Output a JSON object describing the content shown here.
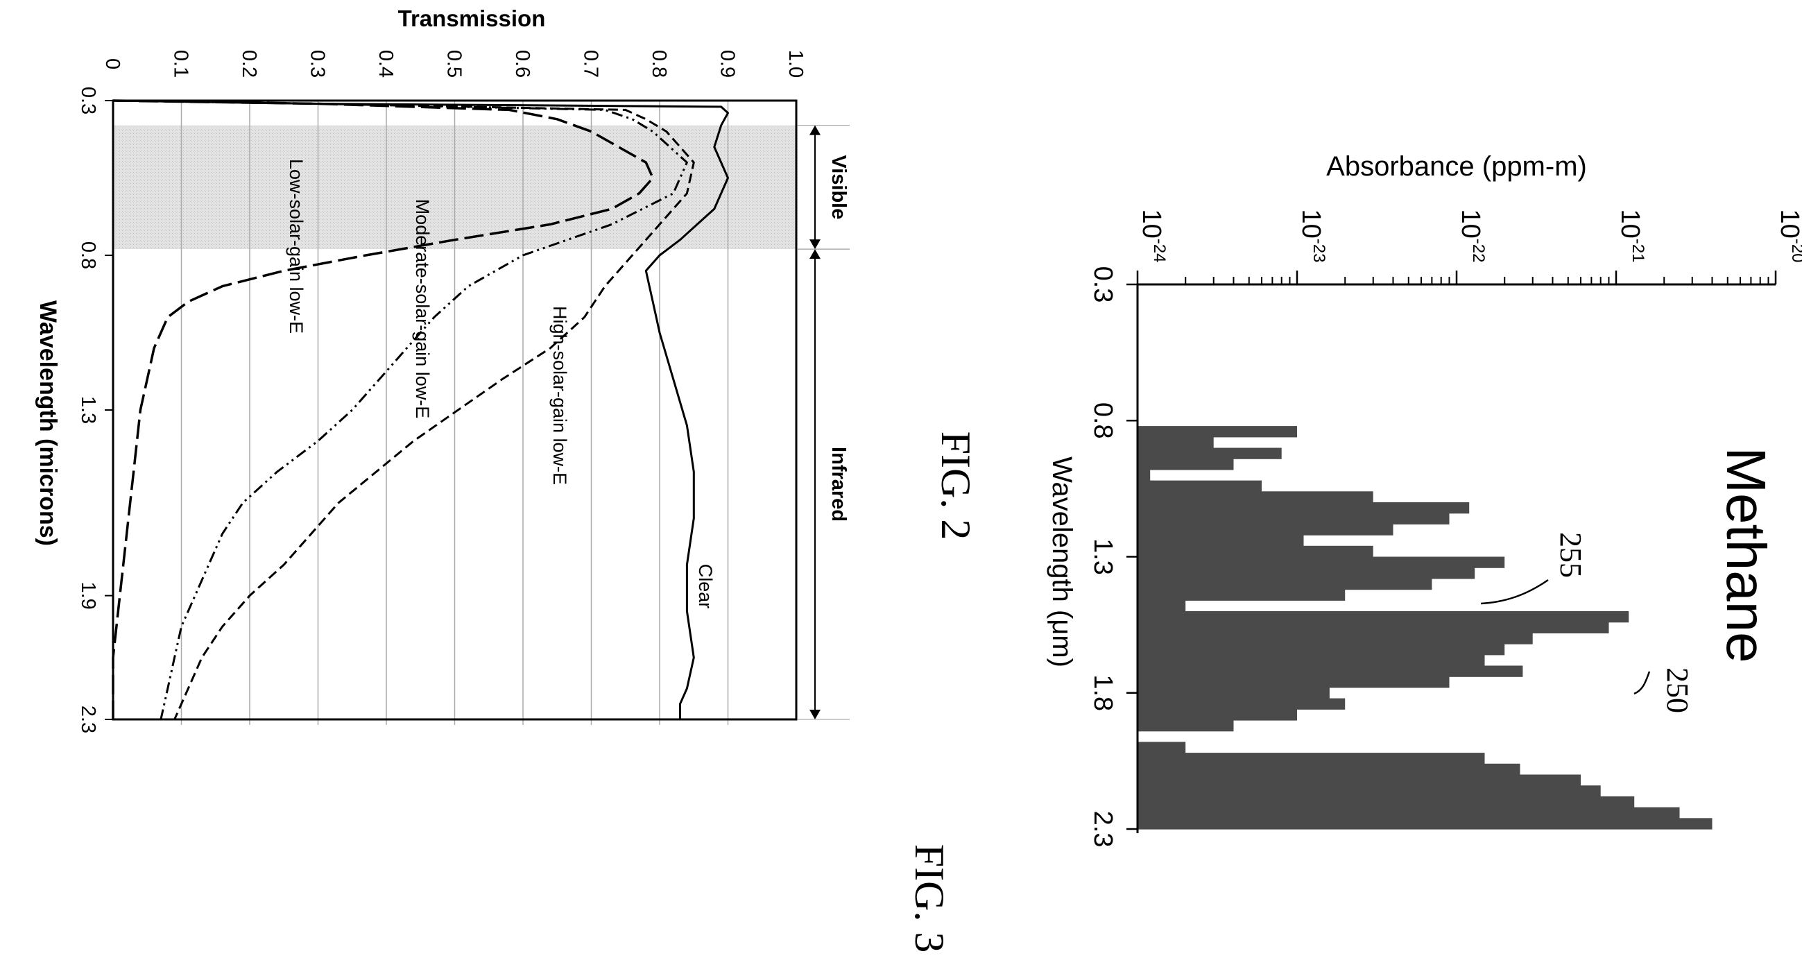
{
  "chart_data": [
    {
      "figure_label": "FIG. 2",
      "type": "bar",
      "title": "Methane",
      "xlabel": "Wavelength (μm)",
      "ylabel": "Absorbance (ppm-m)",
      "x_ticks": [
        "0.3",
        "0.8",
        "1.3",
        "1.8",
        "2.3"
      ],
      "xlim": [
        0.3,
        2.3
      ],
      "y_scale": "log",
      "ylim": [
        1e-24,
        1e-20
      ],
      "y_ticks": [
        {
          "base": "10",
          "exp": "-24"
        },
        {
          "base": "10",
          "exp": "-23"
        },
        {
          "base": "10",
          "exp": "-22"
        },
        {
          "base": "10",
          "exp": "-21"
        },
        {
          "base": "10",
          "exp": "-20"
        }
      ],
      "annotations": [
        "255",
        "250"
      ],
      "grid": false,
      "series": [
        {
          "x": [
            0.84,
            0.88,
            0.92,
            0.96,
            1.0,
            1.04,
            1.08,
            1.12,
            1.16,
            1.2,
            1.24,
            1.28,
            1.32,
            1.36,
            1.4,
            1.44,
            1.48,
            1.52,
            1.56,
            1.6,
            1.64,
            1.68,
            1.72,
            1.76,
            1.8,
            1.84,
            1.88,
            1.92,
            1.96,
            2.0,
            2.04,
            2.08,
            2.12,
            2.16,
            2.2,
            2.24,
            2.28
          ],
          "y": [
            1e-23,
            3e-24,
            8e-24,
            4e-24,
            1.2e-24,
            6e-24,
            3e-23,
            1.2e-22,
            9e-23,
            4e-23,
            1.1e-23,
            3e-23,
            2e-22,
            1.3e-22,
            7e-23,
            2e-23,
            2e-24,
            1.2e-21,
            9e-22,
            3e-22,
            2e-22,
            1.5e-22,
            2.6e-22,
            9e-23,
            1.6e-23,
            2e-23,
            1e-23,
            4e-24,
            1e-24,
            2e-24,
            1.5e-22,
            2.5e-22,
            6e-22,
            8e-22,
            1.3e-21,
            2.5e-21,
            4e-21
          ]
        }
      ]
    },
    {
      "figure_label": "FIG. 3",
      "type": "line",
      "xlabel": "Wavelength (microns)",
      "ylabel": "Transmission",
      "x_ticks": [
        "0.3",
        "0.8",
        "1.3",
        "1.9",
        "2.3"
      ],
      "xlim": [
        0.3,
        2.3
      ],
      "y_ticks": [
        "0",
        "0.1",
        "0.2",
        "0.3",
        "0.4",
        "0.5",
        "0.6",
        "0.7",
        "0.8",
        "0.9",
        "1.0"
      ],
      "ylim": [
        0,
        1
      ],
      "grid": true,
      "regions": [
        {
          "label": "Visible",
          "x": [
            0.38,
            0.78
          ],
          "shaded": true
        },
        {
          "label": "Infrared",
          "x": [
            0.78,
            2.3
          ],
          "shaded": false
        }
      ],
      "series": [
        {
          "name": "Clear",
          "x": [
            0.3,
            0.31,
            0.32,
            0.34,
            0.38,
            0.45,
            0.55,
            0.65,
            0.75,
            0.8,
            0.85,
            0.95,
            1.05,
            1.2,
            1.35,
            1.5,
            1.65,
            1.8,
            1.95,
            2.1,
            2.2,
            2.25,
            2.3
          ],
          "y": [
            0.0,
            0.3,
            0.89,
            0.9,
            0.89,
            0.88,
            0.9,
            0.88,
            0.83,
            0.8,
            0.78,
            0.79,
            0.8,
            0.82,
            0.84,
            0.85,
            0.85,
            0.84,
            0.84,
            0.85,
            0.84,
            0.83,
            0.83
          ]
        },
        {
          "name": "High-solar-gain low-E",
          "x": [
            0.3,
            0.31,
            0.33,
            0.36,
            0.4,
            0.5,
            0.6,
            0.7,
            0.8,
            0.9,
            1.0,
            1.1,
            1.2,
            1.4,
            1.6,
            1.8,
            1.9,
            2.0,
            2.1,
            2.2,
            2.3
          ],
          "y": [
            0.0,
            0.3,
            0.75,
            0.78,
            0.81,
            0.85,
            0.84,
            0.8,
            0.76,
            0.72,
            0.69,
            0.64,
            0.57,
            0.44,
            0.33,
            0.25,
            0.2,
            0.16,
            0.13,
            0.11,
            0.09
          ]
        },
        {
          "name": "Moderate-solar-gain low-E",
          "x": [
            0.3,
            0.31,
            0.33,
            0.36,
            0.4,
            0.5,
            0.6,
            0.7,
            0.8,
            0.9,
            1.0,
            1.1,
            1.2,
            1.3,
            1.4,
            1.5,
            1.6,
            1.7,
            1.8,
            1.9,
            2.0,
            2.1,
            2.2,
            2.3
          ],
          "y": [
            0.0,
            0.3,
            0.72,
            0.76,
            0.79,
            0.84,
            0.82,
            0.73,
            0.6,
            0.52,
            0.47,
            0.43,
            0.39,
            0.35,
            0.3,
            0.24,
            0.19,
            0.16,
            0.14,
            0.12,
            0.1,
            0.09,
            0.08,
            0.07
          ]
        },
        {
          "name": "Low-solar-gain low-E",
          "x": [
            0.3,
            0.31,
            0.33,
            0.36,
            0.4,
            0.5,
            0.55,
            0.6,
            0.65,
            0.7,
            0.75,
            0.8,
            0.85,
            0.9,
            0.95,
            1.0,
            1.1,
            1.2,
            1.3,
            1.5,
            1.7,
            1.9,
            2.1,
            2.3
          ],
          "y": [
            0.0,
            0.3,
            0.58,
            0.65,
            0.7,
            0.78,
            0.79,
            0.77,
            0.73,
            0.64,
            0.5,
            0.37,
            0.25,
            0.16,
            0.11,
            0.08,
            0.06,
            0.05,
            0.04,
            0.03,
            0.02,
            0.01,
            0.0,
            0.0
          ]
        }
      ]
    }
  ]
}
